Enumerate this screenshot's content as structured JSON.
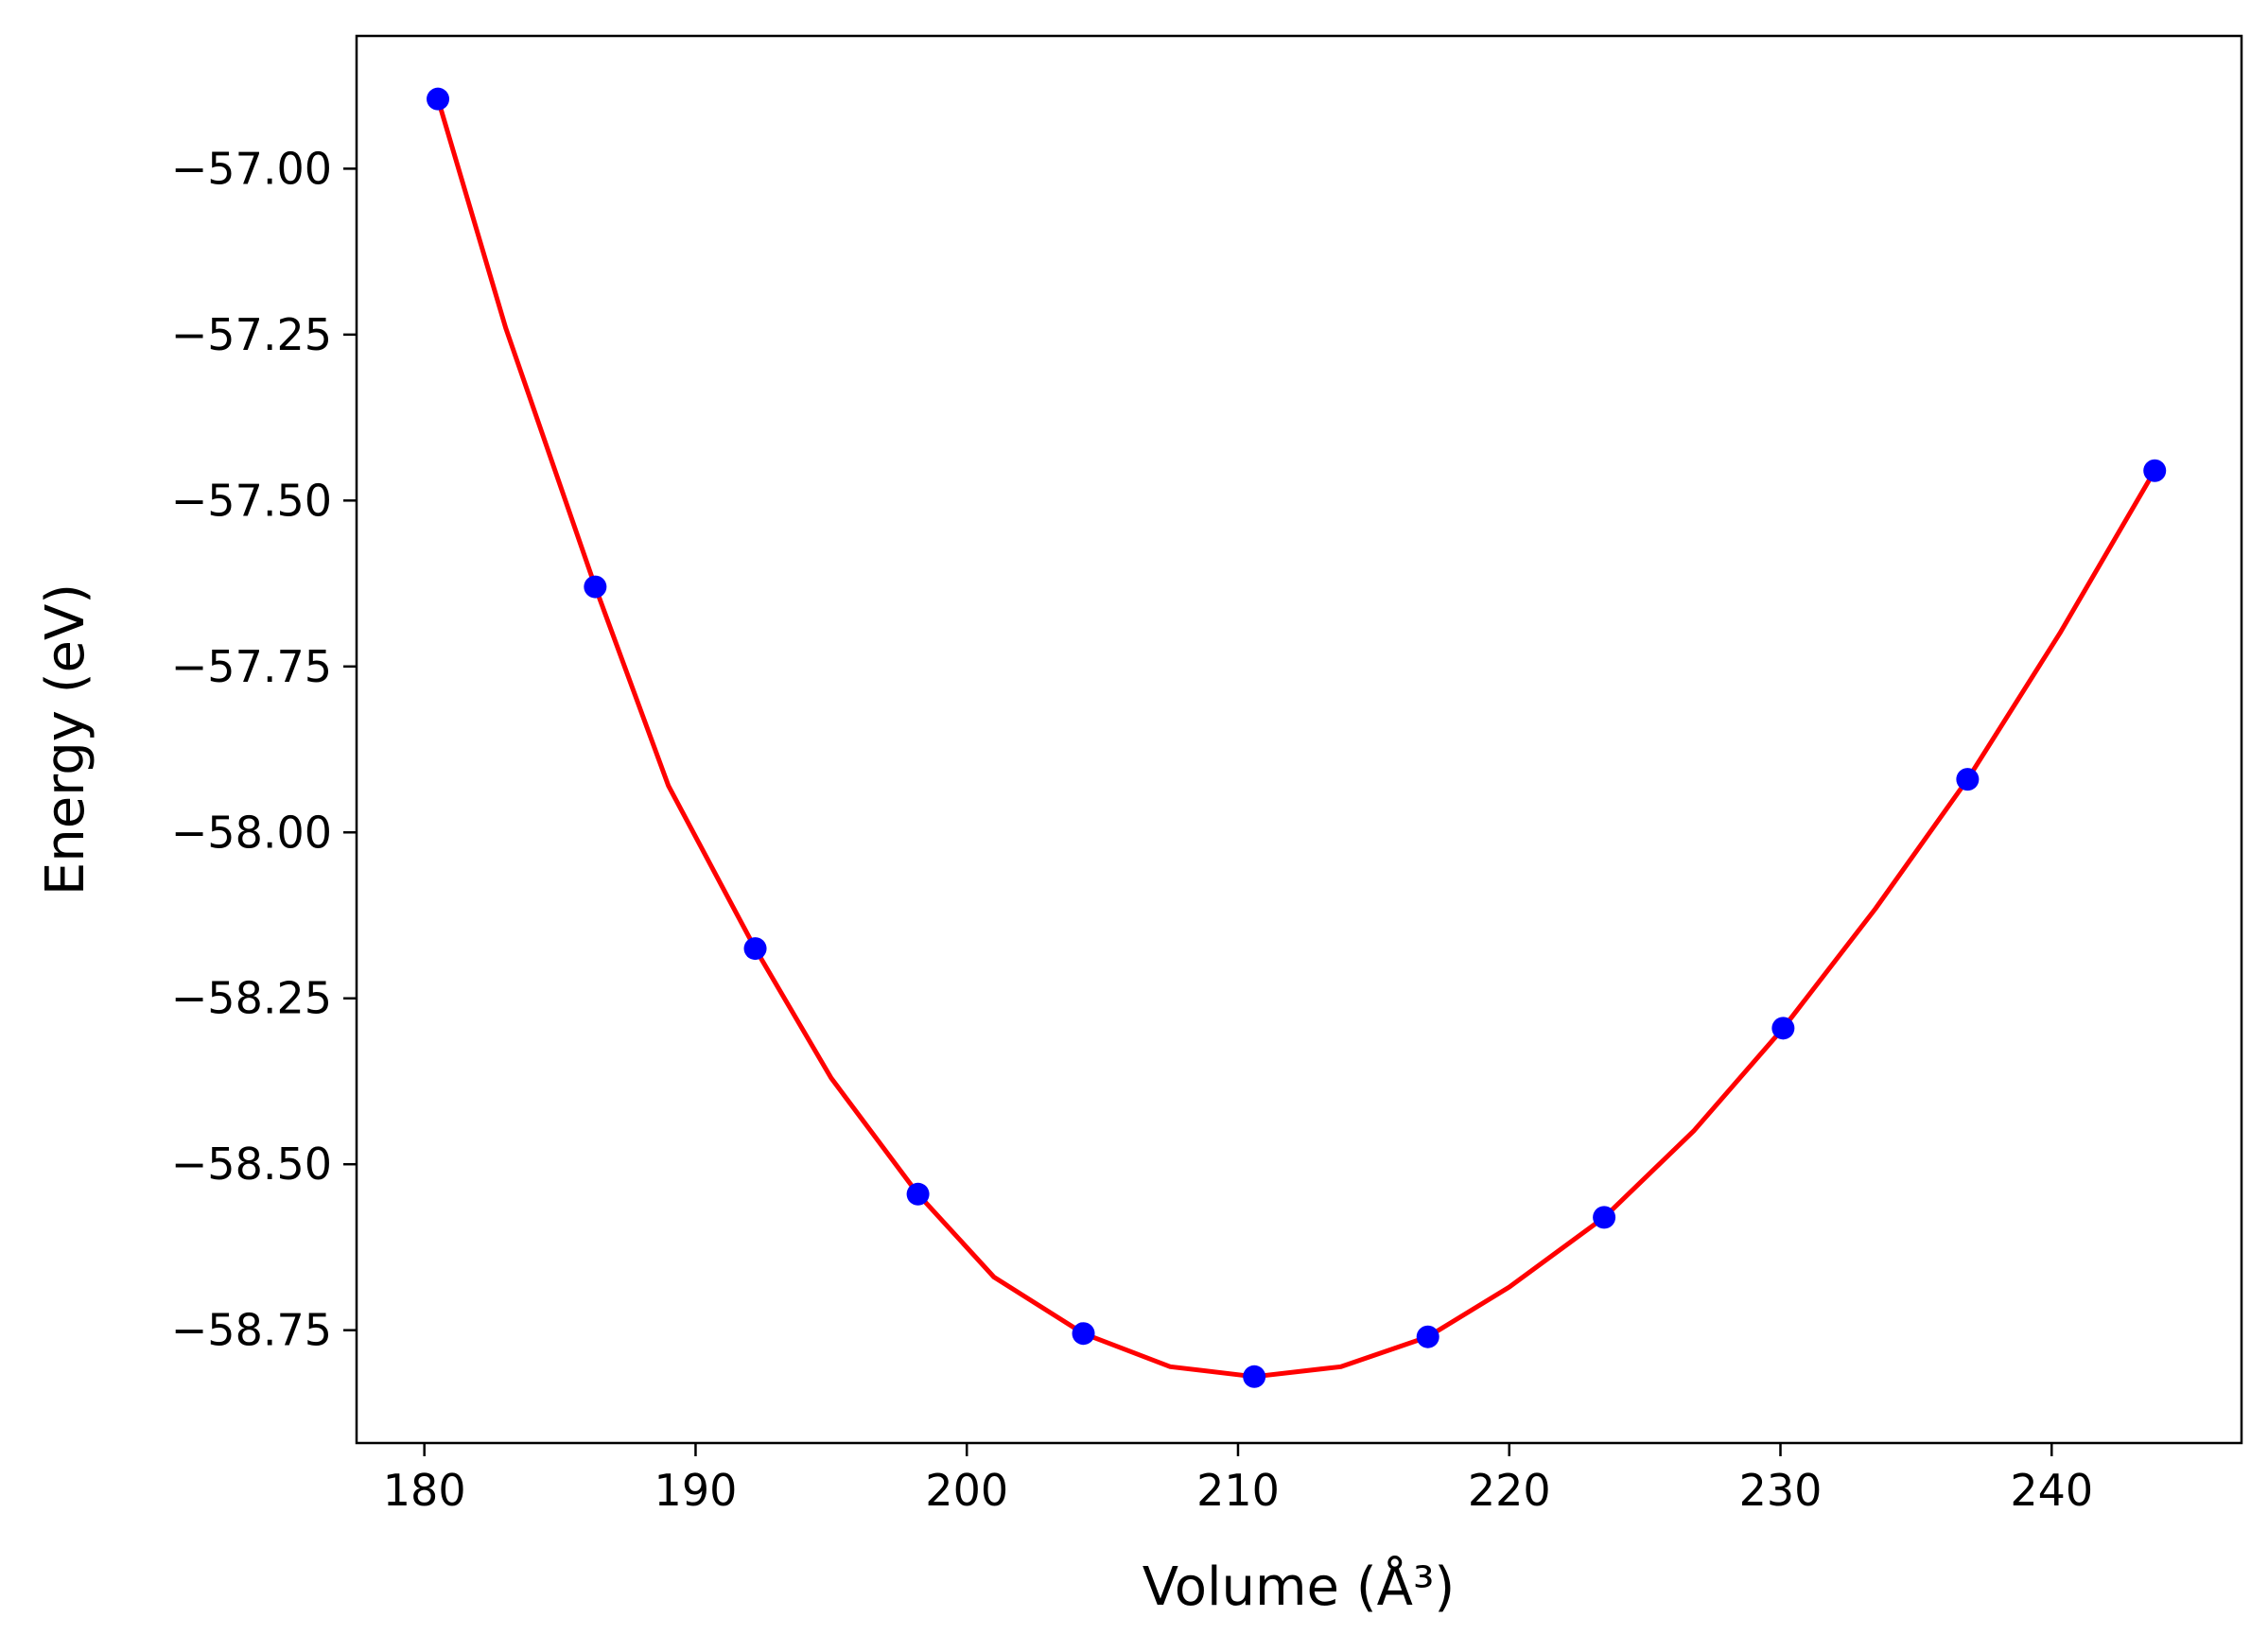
{
  "chart_data": {
    "type": "line",
    "xlabel": "Volume (Å³)",
    "ylabel": "Energy (eV)",
    "xlim": [
      177.5,
      247.0
    ],
    "ylim": [
      -58.92,
      -56.8
    ],
    "xticks": [
      180,
      190,
      200,
      210,
      220,
      230,
      240
    ],
    "yticks": [
      -57.0,
      -57.25,
      -57.5,
      -57.75,
      -58.0,
      -58.25,
      -58.5,
      -58.75
    ],
    "xtick_labels": [
      "180",
      "190",
      "200",
      "210",
      "220",
      "230",
      "240"
    ],
    "ytick_labels": [
      "−57.00",
      "−57.25",
      "−57.50",
      "−57.75",
      "−58.00",
      "−58.25",
      "−58.50",
      "−58.75"
    ],
    "grid": false,
    "series": [
      {
        "kind": "scatter",
        "color": "#0000ff",
        "x": [
          180.5,
          186.3,
          192.2,
          198.2,
          204.3,
          210.6,
          217.0,
          223.5,
          230.1,
          236.9,
          243.8
        ],
        "y": [
          -56.895,
          -57.63,
          -58.175,
          -58.545,
          -58.755,
          -58.82,
          -58.76,
          -58.58,
          -58.295,
          -57.92,
          -57.455
        ]
      },
      {
        "kind": "line",
        "color": "#ff0000",
        "x": [
          180.5,
          183.0,
          186.3,
          189.0,
          192.2,
          195.0,
          198.2,
          201.0,
          204.3,
          207.5,
          210.6,
          213.8,
          217.0,
          220.0,
          223.5,
          226.8,
          230.1,
          233.5,
          236.9,
          240.3,
          243.8
        ],
        "y": [
          -56.895,
          -57.24,
          -57.63,
          -57.93,
          -58.175,
          -58.37,
          -58.545,
          -58.67,
          -58.755,
          -58.805,
          -58.82,
          -58.805,
          -58.76,
          -58.685,
          -58.58,
          -58.45,
          -58.295,
          -58.115,
          -57.92,
          -57.7,
          -57.455
        ]
      }
    ]
  }
}
